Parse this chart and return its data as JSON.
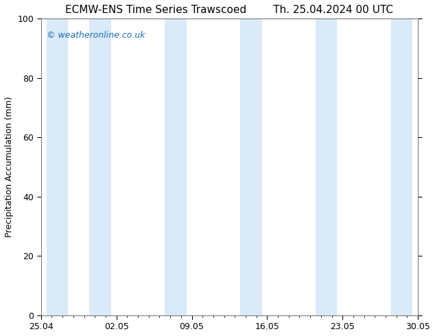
{
  "title_left": "ECMW-ENS Time Series Trawscoed",
  "title_right": "Th. 25.04.2024 00 UTC",
  "ylabel": "Precipitation Accumulation (mm)",
  "watermark": "© weatheronline.co.uk",
  "watermark_color": "#1a6bb5",
  "ylim": [
    0,
    100
  ],
  "yticks": [
    0,
    20,
    40,
    60,
    80,
    100
  ],
  "xtick_labels": [
    "25.04",
    "02.05",
    "09.05",
    "16.05",
    "23.05",
    "30.05"
  ],
  "xtick_positions": [
    0,
    7,
    14,
    21,
    28,
    35
  ],
  "xlim_start": 0,
  "xlim_end": 35,
  "background_color": "#ffffff",
  "plot_bg_color": "#ffffff",
  "band_color": "#daeaf8",
  "band_positions": [
    [
      0.5,
      2.5
    ],
    [
      4.5,
      6.5
    ],
    [
      11.5,
      13.5
    ],
    [
      18.5,
      20.5
    ],
    [
      25.5,
      27.5
    ],
    [
      32.5,
      34.5
    ]
  ],
  "title_fontsize": 11,
  "ylabel_fontsize": 9,
  "tick_fontsize": 9,
  "watermark_fontsize": 9
}
